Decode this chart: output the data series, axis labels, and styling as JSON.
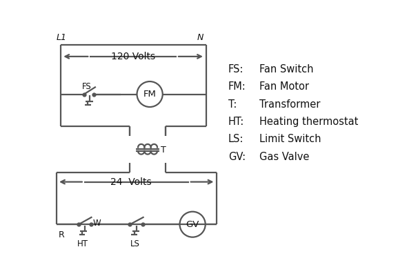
{
  "bg_color": "#ffffff",
  "line_color": "#555555",
  "text_color": "#111111",
  "legend_items": [
    [
      "FS:",
      "Fan Switch"
    ],
    [
      "FM:",
      "Fan Motor"
    ],
    [
      "T:",
      "Transformer"
    ],
    [
      "HT:",
      "Heating thermostat"
    ],
    [
      "LS:",
      "Limit Switch"
    ],
    [
      "GV:",
      "Gas Valve"
    ]
  ]
}
